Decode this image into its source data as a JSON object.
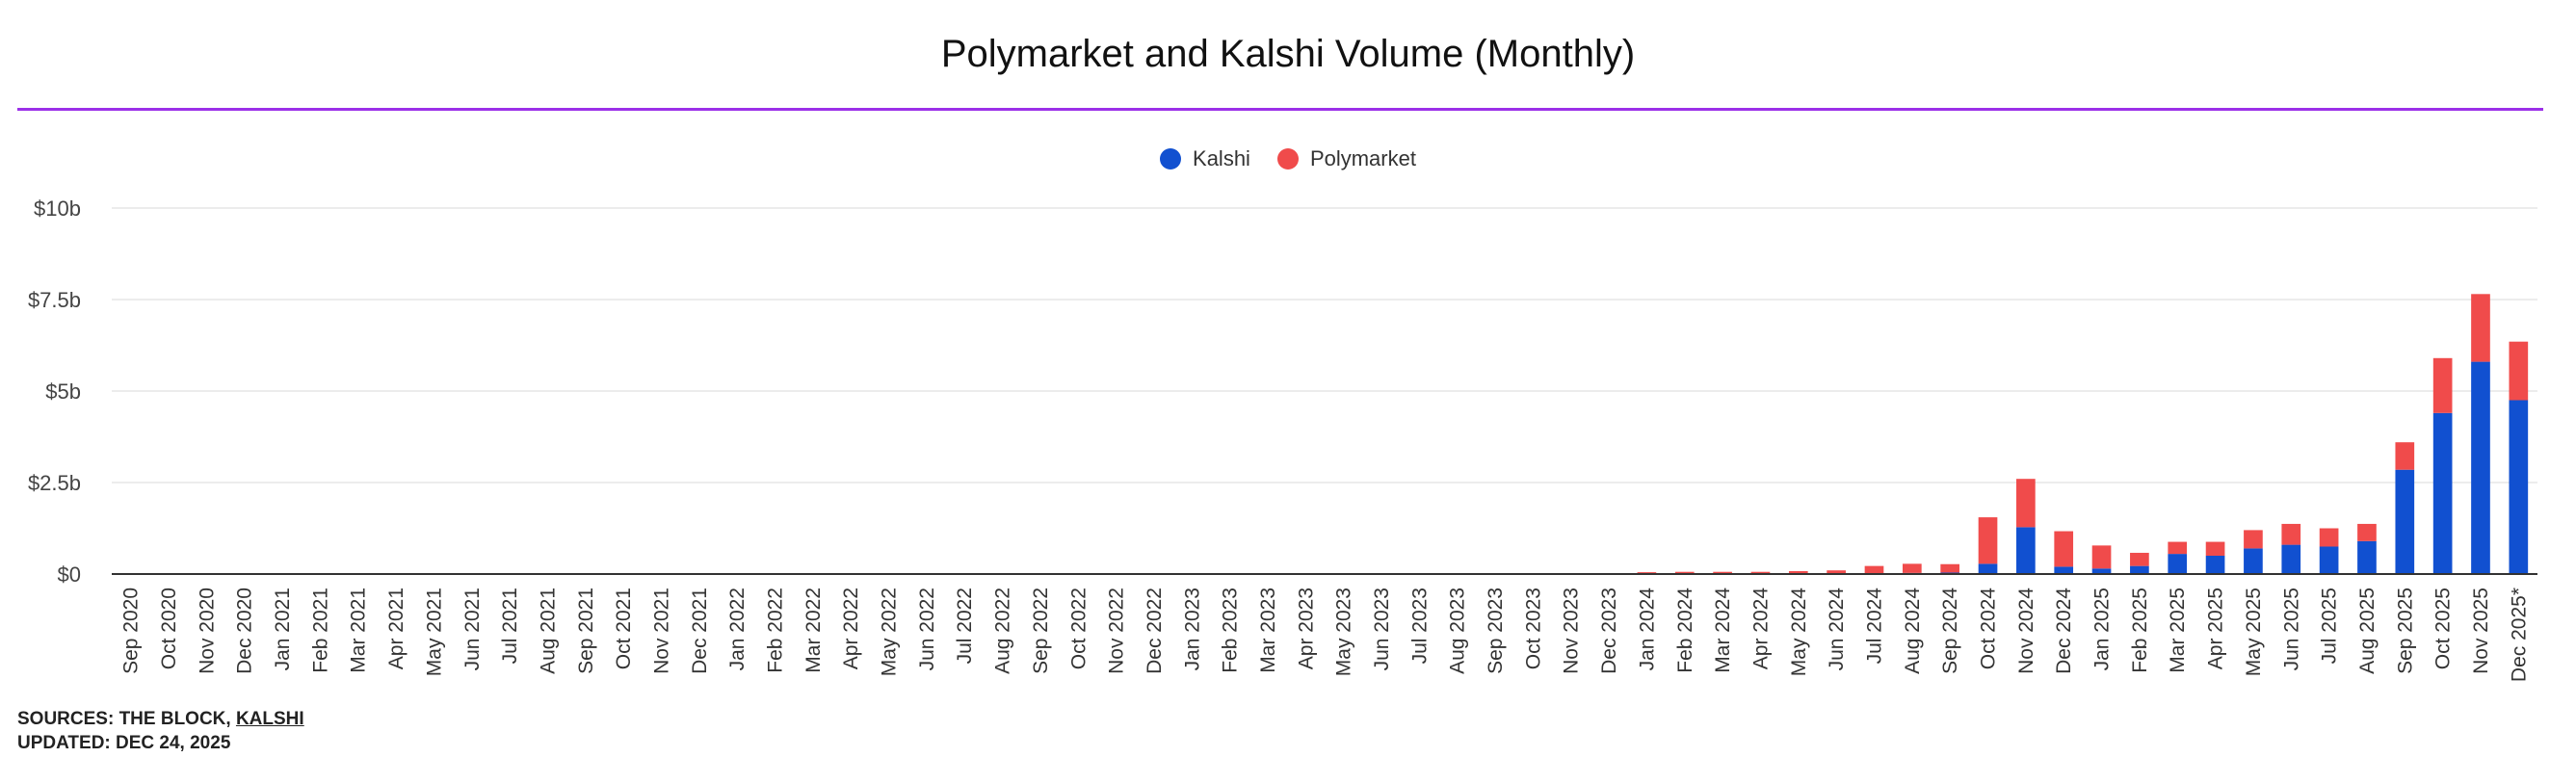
{
  "chart_data": {
    "type": "bar",
    "stacked": true,
    "title": "Polymarket and Kalshi Volume (Monthly)",
    "xlabel": "",
    "ylabel": "",
    "ylim": [
      0,
      10
    ],
    "y_unit": "billions USD",
    "y_ticks": [
      0,
      2.5,
      5,
      7.5,
      10
    ],
    "y_tick_labels": [
      "$0",
      "$2.5b",
      "$5b",
      "$7.5b",
      "$10b"
    ],
    "grid": true,
    "legend_position": "top-center",
    "categories": [
      "Sep 2020",
      "Oct 2020",
      "Nov 2020",
      "Dec 2020",
      "Jan 2021",
      "Feb 2021",
      "Mar 2021",
      "Apr 2021",
      "May 2021",
      "Jun 2021",
      "Jul 2021",
      "Aug 2021",
      "Sep 2021",
      "Oct 2021",
      "Nov 2021",
      "Dec 2021",
      "Jan 2022",
      "Feb 2022",
      "Mar 2022",
      "Apr 2022",
      "May 2022",
      "Jun 2022",
      "Jul 2022",
      "Aug 2022",
      "Sep 2022",
      "Oct 2022",
      "Nov 2022",
      "Dec 2022",
      "Jan 2023",
      "Feb 2023",
      "Mar 2023",
      "Apr 2023",
      "May 2023",
      "Jun 2023",
      "Jul 2023",
      "Aug 2023",
      "Sep 2023",
      "Oct 2023",
      "Nov 2023",
      "Dec 2023",
      "Jan 2024",
      "Feb 2024",
      "Mar 2024",
      "Apr 2024",
      "May 2024",
      "Jun 2024",
      "Jul 2024",
      "Aug 2024",
      "Sep 2024",
      "Oct 2024",
      "Nov 2024",
      "Dec 2024",
      "Jan 2025",
      "Feb 2025",
      "Mar 2025",
      "Apr 2025",
      "May 2025",
      "Jun 2025",
      "Jul 2025",
      "Aug 2025",
      "Sep 2025",
      "Oct 2025",
      "Nov 2025",
      "Dec 2025*"
    ],
    "series": [
      {
        "name": "Kalshi",
        "color": "#1150d0",
        "values": [
          0,
          0,
          0,
          0,
          0,
          0,
          0,
          0,
          0,
          0,
          0,
          0,
          0,
          0,
          0,
          0,
          0,
          0,
          0,
          0,
          0,
          0,
          0,
          0,
          0,
          0,
          0,
          0,
          0,
          0,
          0,
          0,
          0,
          0,
          0,
          0,
          0,
          0,
          0,
          0,
          0.01,
          0.01,
          0.01,
          0.01,
          0.02,
          0.02,
          0.02,
          0.03,
          0.04,
          0.28,
          1.28,
          0.2,
          0.15,
          0.22,
          0.55,
          0.5,
          0.7,
          0.8,
          0.75,
          0.9,
          2.85,
          4.4,
          5.8,
          4.75
        ]
      },
      {
        "name": "Polymarket",
        "color": "#f04b4b",
        "values": [
          0,
          0,
          0,
          0,
          0,
          0,
          0,
          0,
          0,
          0,
          0,
          0,
          0,
          0,
          0,
          0,
          0,
          0,
          0,
          0,
          0,
          0,
          0,
          0,
          0,
          0,
          0,
          0,
          0,
          0,
          0,
          0,
          0,
          0,
          0,
          0,
          0,
          0,
          0,
          0,
          0.04,
          0.05,
          0.05,
          0.05,
          0.06,
          0.08,
          0.2,
          0.25,
          0.23,
          1.27,
          1.32,
          0.97,
          0.63,
          0.36,
          0.33,
          0.38,
          0.5,
          0.57,
          0.5,
          0.47,
          0.75,
          1.5,
          1.85,
          1.6
        ]
      }
    ]
  },
  "footer": {
    "sources_prefix": "SOURCES: THE BLOCK, ",
    "sources_link": "KALSHI",
    "updated": "UPDATED: DEC 24, 2025"
  }
}
